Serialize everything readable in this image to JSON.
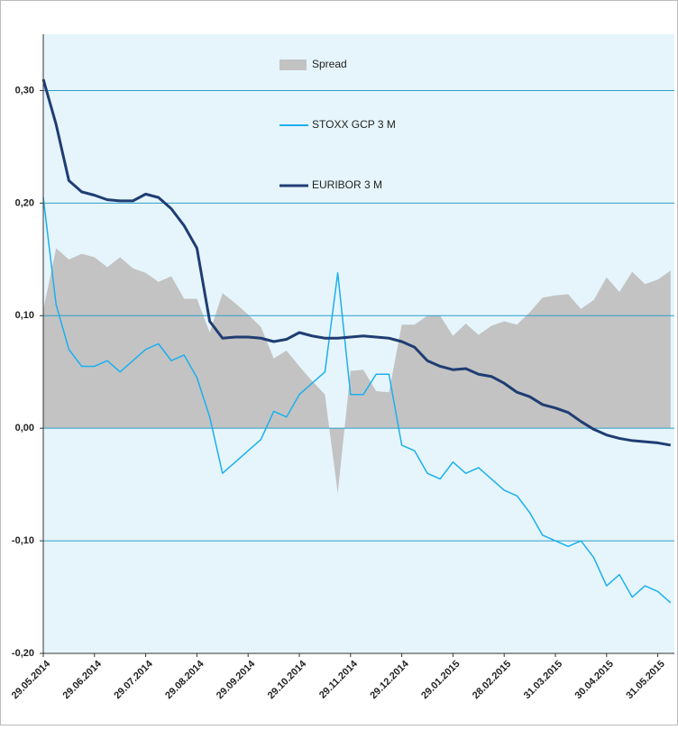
{
  "chart_data": {
    "type": "line",
    "categories": [
      "29.05.2014",
      null,
      null,
      null,
      "29.06.2014",
      null,
      null,
      null,
      "29.07.2014",
      null,
      null,
      null,
      "29.08.2014",
      null,
      null,
      null,
      "29.09.2014",
      null,
      null,
      null,
      "29.10.2014",
      null,
      null,
      null,
      "29.11.2014",
      null,
      null,
      null,
      "29.12.2014",
      null,
      null,
      null,
      "29.01.2015",
      null,
      null,
      null,
      "28.02.2015",
      null,
      null,
      null,
      "31.03.2015",
      null,
      null,
      null,
      "30.04.2015",
      null,
      null,
      null,
      "31.05.2015",
      null
    ],
    "series": [
      {
        "name": "Spread",
        "type": "area",
        "color": "#c3c3c3",
        "values": [
          0.105,
          0.16,
          0.15,
          0.155,
          0.152,
          0.143,
          0.152,
          0.142,
          0.138,
          0.13,
          0.135,
          0.115,
          0.115,
          0.085,
          0.12,
          0.111,
          0.101,
          0.09,
          0.062,
          0.069,
          0.055,
          0.042,
          0.03,
          -0.058,
          0.051,
          0.052,
          0.033,
          0.032,
          0.092,
          0.092,
          0.1,
          0.1,
          0.082,
          0.093,
          0.083,
          0.091,
          0.095,
          0.092,
          0.103,
          0.116,
          0.118,
          0.119,
          0.106,
          0.114,
          0.134,
          0.121,
          0.139,
          0.128,
          0.132,
          0.14
        ]
      },
      {
        "name": "STOXX GCP 3 M",
        "type": "line",
        "color": "#1ab0ee",
        "values": [
          0.205,
          0.11,
          0.07,
          0.055,
          0.055,
          0.06,
          0.05,
          0.06,
          0.07,
          0.075,
          0.06,
          0.065,
          0.045,
          0.01,
          -0.04,
          -0.03,
          -0.02,
          -0.01,
          0.015,
          0.01,
          0.03,
          0.04,
          0.05,
          0.138,
          0.03,
          0.03,
          0.048,
          0.048,
          -0.015,
          -0.02,
          -0.04,
          -0.045,
          -0.03,
          -0.04,
          -0.035,
          -0.045,
          -0.055,
          -0.06,
          -0.075,
          -0.095,
          -0.1,
          -0.105,
          -0.1,
          -0.115,
          -0.14,
          -0.13,
          -0.15,
          -0.14,
          -0.145,
          -0.155
        ]
      },
      {
        "name": "EURIBOR 3 M",
        "type": "line",
        "color": "#1f3d73",
        "width": 3,
        "values": [
          0.31,
          0.27,
          0.22,
          0.21,
          0.207,
          0.203,
          0.202,
          0.202,
          0.208,
          0.205,
          0.195,
          0.18,
          0.16,
          0.095,
          0.08,
          0.081,
          0.081,
          0.08,
          0.077,
          0.079,
          0.085,
          0.082,
          0.08,
          0.08,
          0.081,
          0.082,
          0.081,
          0.08,
          0.077,
          0.072,
          0.06,
          0.055,
          0.052,
          0.053,
          0.048,
          0.046,
          0.04,
          0.032,
          0.028,
          0.021,
          0.018,
          0.014,
          0.006,
          -0.001,
          -0.006,
          -0.009,
          -0.011,
          -0.012,
          -0.013,
          -0.015
        ]
      }
    ],
    "ylim": [
      -0.2,
      0.35
    ],
    "yticks": [
      {
        "value": -0.2,
        "label": "-0,20"
      },
      {
        "value": -0.1,
        "label": "-0,10"
      },
      {
        "value": 0,
        "label": "0,00"
      },
      {
        "value": 0.1,
        "label": "0,10"
      },
      {
        "value": 0.2,
        "label": "0,20"
      },
      {
        "value": 0.3,
        "label": "0,30"
      }
    ],
    "grid": true,
    "grid_color": "#2a9fc9",
    "plot_background": "#e6f5fc"
  }
}
